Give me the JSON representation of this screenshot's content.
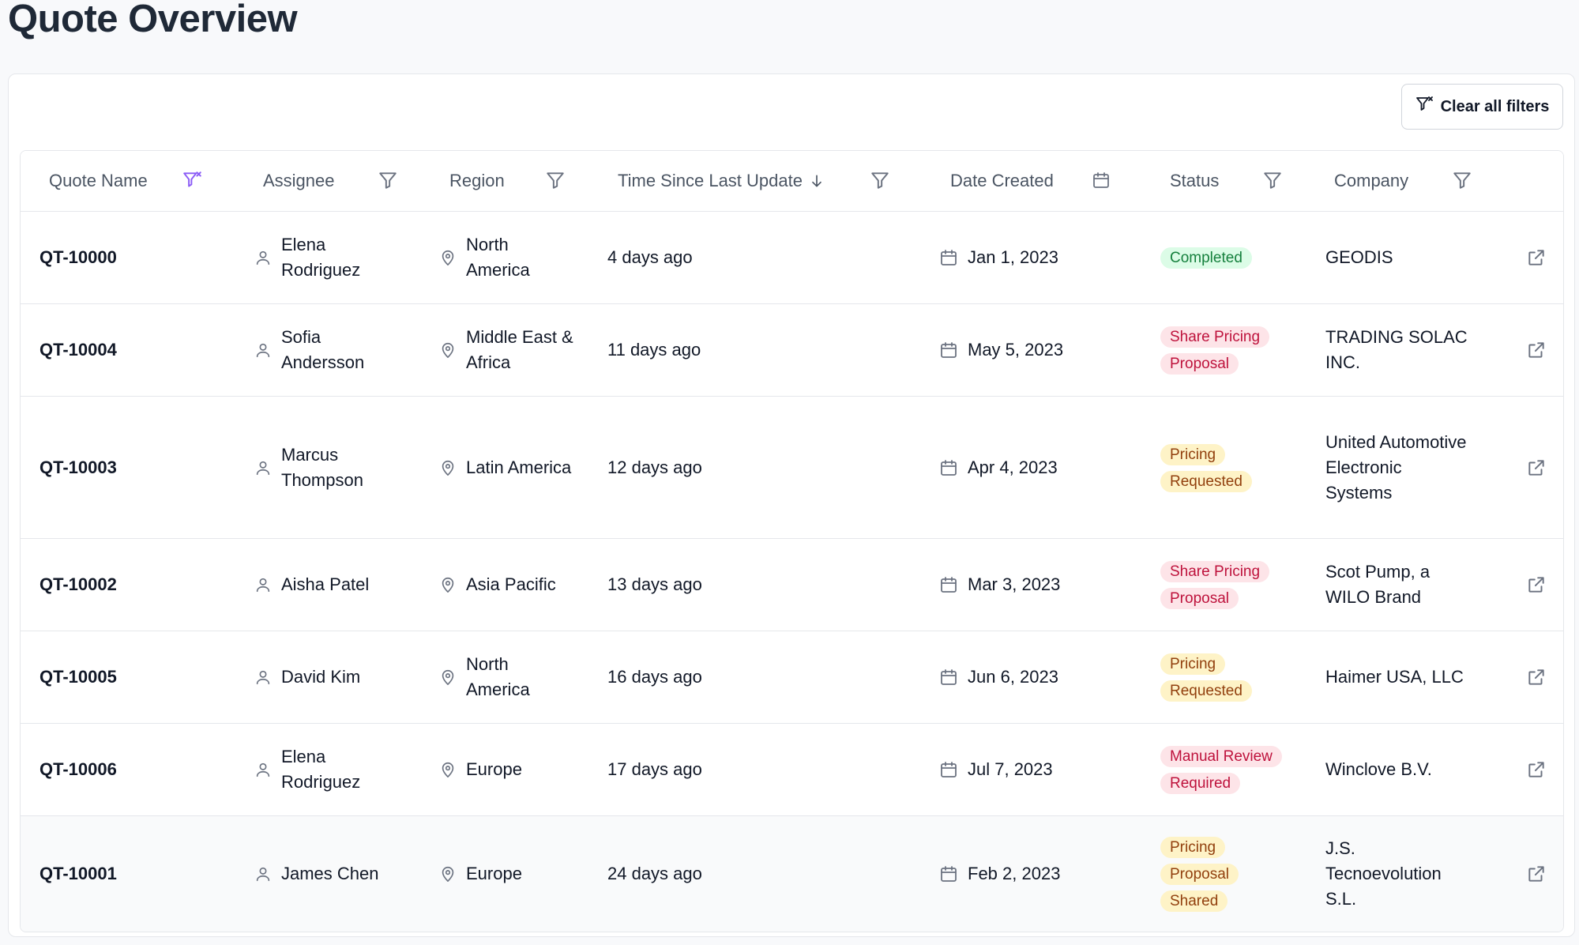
{
  "page": {
    "title": "Quote Overview"
  },
  "toolbar": {
    "clear_filters_label": "Clear all filters"
  },
  "table": {
    "columns": {
      "quote_name": "Quote Name",
      "assignee": "Assignee",
      "region": "Region",
      "time_since": "Time Since Last Update",
      "date_created": "Date Created",
      "status": "Status",
      "company": "Company"
    },
    "rows": [
      {
        "id": "QT-10000",
        "assignee": "Elena Rodriguez",
        "region": "North America",
        "time": "4 days ago",
        "date": "Jan 1, 2023",
        "status": "Completed",
        "status_tone": "green",
        "company": "GEODIS"
      },
      {
        "id": "QT-10004",
        "assignee": "Sofia Andersson",
        "region": "Middle East & Africa",
        "time": "11 days ago",
        "date": "May 5, 2023",
        "status": "Share Pricing Proposal",
        "status_tone": "red",
        "company": "TRADING SOLAC INC."
      },
      {
        "id": "QT-10003",
        "assignee": "Marcus Thompson",
        "region": "Latin America",
        "time": "12 days ago",
        "date": "Apr 4, 2023",
        "status": "Pricing Requested",
        "status_tone": "yellow",
        "company": "United Automotive Electronic Systems"
      },
      {
        "id": "QT-10002",
        "assignee": "Aisha Patel",
        "region": "Asia Pacific",
        "time": "13 days ago",
        "date": "Mar 3, 2023",
        "status": "Share Pricing Proposal",
        "status_tone": "red",
        "company": "Scot Pump, a WILO Brand"
      },
      {
        "id": "QT-10005",
        "assignee": "David Kim",
        "region": "North America",
        "time": "16 days ago",
        "date": "Jun 6, 2023",
        "status": "Pricing Requested",
        "status_tone": "yellow",
        "company": "Haimer USA, LLC"
      },
      {
        "id": "QT-10006",
        "assignee": "Elena Rodriguez",
        "region": "Europe",
        "time": "17 days ago",
        "date": "Jul 7, 2023",
        "status": "Manual Review Required",
        "status_tone": "red",
        "company": "Winclove B.V."
      },
      {
        "id": "QT-10001",
        "assignee": "James Chen",
        "region": "Europe",
        "time": "24 days ago",
        "date": "Feb 2, 2023",
        "status": "Pricing Proposal Shared",
        "status_tone": "yellow",
        "company": "J.S. Tecnoevolution S.L."
      }
    ]
  }
}
